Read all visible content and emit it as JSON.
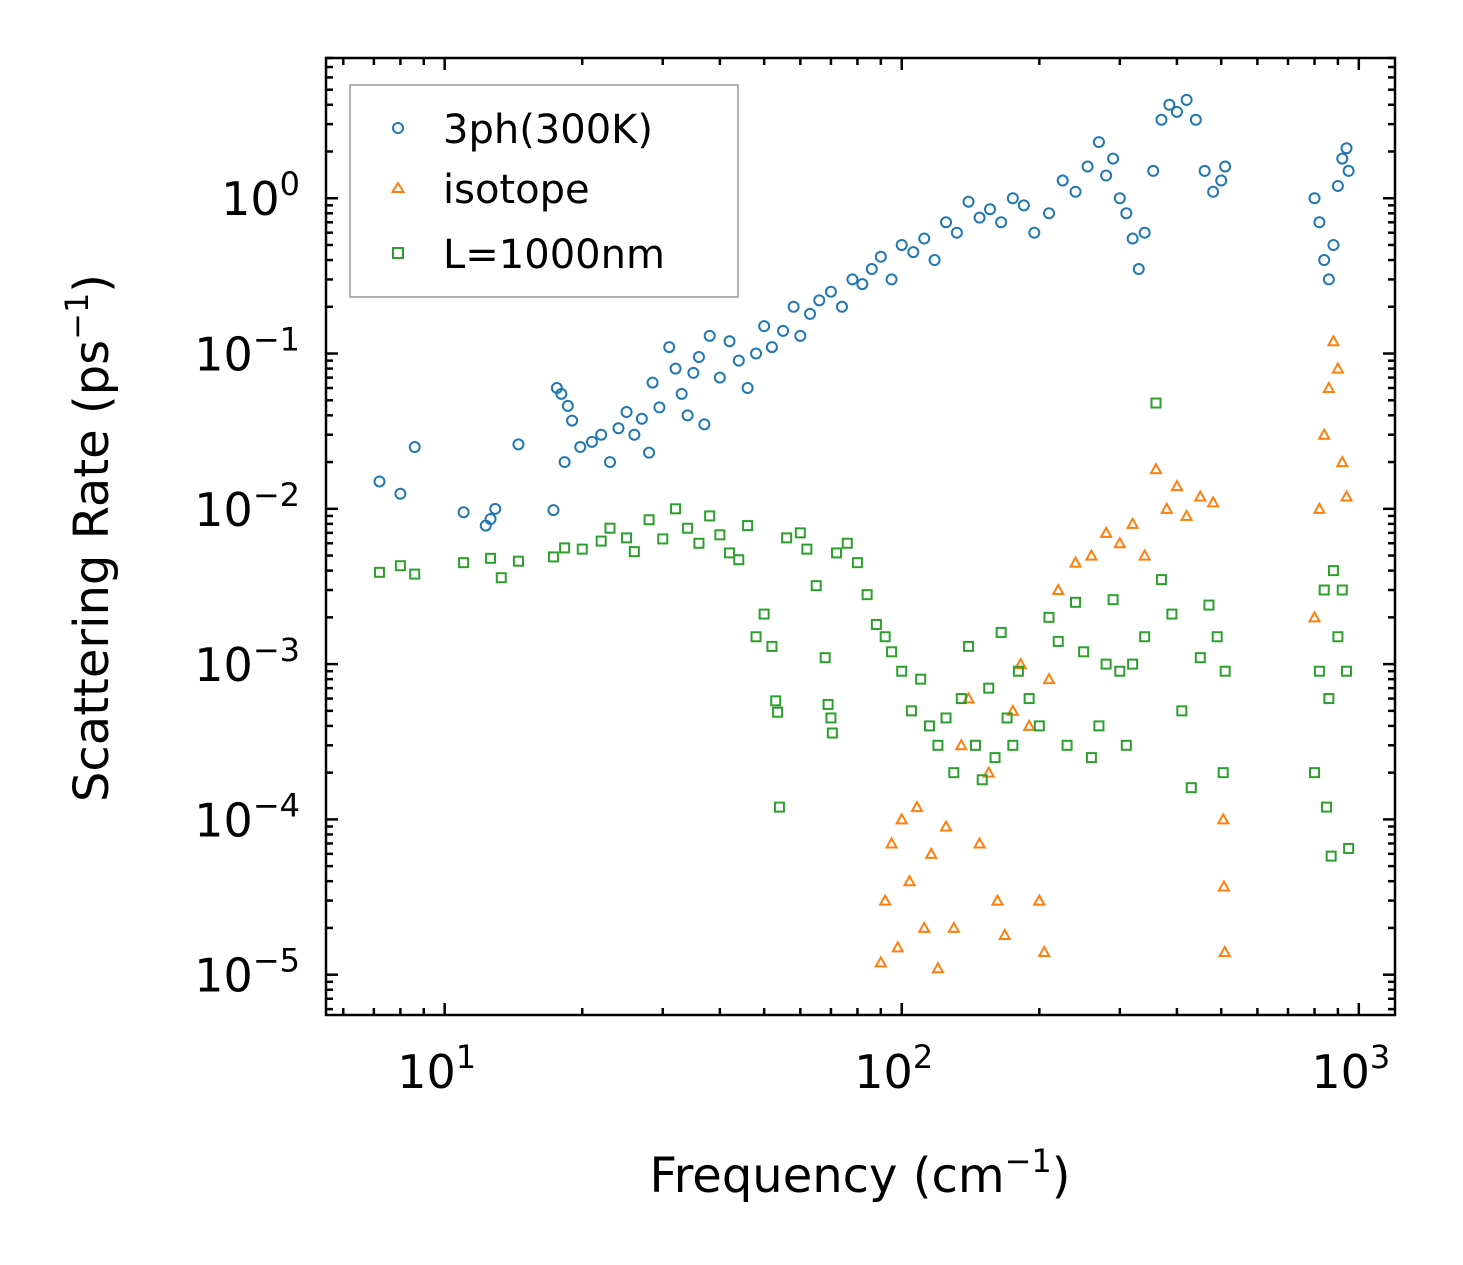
{
  "chart_data": {
    "type": "scatter",
    "xscale": "log",
    "yscale": "log",
    "xlim": [
      5.5,
      1200
    ],
    "ylim": [
      5.5e-06,
      8
    ],
    "xlabel": "Frequency (cm",
    "xlabel_sup": "−1",
    "xlabel_end": ")",
    "ylabel": "Scattering Rate (ps",
    "ylabel_sup": "−1",
    "ylabel_end": ")",
    "x_ticks": [
      {
        "value": 10,
        "base": "10",
        "exp": "1"
      },
      {
        "value": 100,
        "base": "10",
        "exp": "2"
      },
      {
        "value": 1000,
        "base": "10",
        "exp": "3"
      }
    ],
    "y_ticks": [
      {
        "value": 1,
        "base": "10",
        "exp": "0"
      },
      {
        "value": 0.1,
        "base": "10",
        "exp": "−1"
      },
      {
        "value": 0.01,
        "base": "10",
        "exp": "−2"
      },
      {
        "value": 0.001,
        "base": "10",
        "exp": "−3"
      },
      {
        "value": 0.0001,
        "base": "10",
        "exp": "−4"
      },
      {
        "value": 1e-05,
        "base": "10",
        "exp": "−5"
      }
    ],
    "legend_position": "top-left",
    "series": [
      {
        "name": "3ph(300K)",
        "marker": "circle",
        "color": "#1f77b4",
        "points": [
          [
            7.2,
            0.015
          ],
          [
            8.0,
            0.0125
          ],
          [
            8.6,
            0.025
          ],
          [
            11,
            0.0095
          ],
          [
            12.3,
            0.0078
          ],
          [
            12.6,
            0.0086
          ],
          [
            12.9,
            0.01
          ],
          [
            14.5,
            0.026
          ],
          [
            17.3,
            0.0098
          ],
          [
            17.6,
            0.06
          ],
          [
            18,
            0.055
          ],
          [
            18.6,
            0.046
          ],
          [
            19,
            0.037
          ],
          [
            18.3,
            0.02
          ],
          [
            19.8,
            0.025
          ],
          [
            21,
            0.027
          ],
          [
            22,
            0.03
          ],
          [
            23,
            0.02
          ],
          [
            24,
            0.033
          ],
          [
            25,
            0.042
          ],
          [
            26,
            0.03
          ],
          [
            27,
            0.038
          ],
          [
            28,
            0.023
          ],
          [
            28.5,
            0.065
          ],
          [
            29.5,
            0.045
          ],
          [
            31,
            0.11
          ],
          [
            32,
            0.08
          ],
          [
            33,
            0.055
          ],
          [
            34,
            0.04
          ],
          [
            35,
            0.075
          ],
          [
            36,
            0.095
          ],
          [
            37,
            0.035
          ],
          [
            38,
            0.13
          ],
          [
            40,
            0.07
          ],
          [
            42,
            0.12
          ],
          [
            44,
            0.09
          ],
          [
            46,
            0.06
          ],
          [
            48,
            0.1
          ],
          [
            50,
            0.15
          ],
          [
            52,
            0.11
          ],
          [
            55,
            0.14
          ],
          [
            58,
            0.2
          ],
          [
            60,
            0.13
          ],
          [
            63,
            0.18
          ],
          [
            66,
            0.22
          ],
          [
            70,
            0.25
          ],
          [
            74,
            0.2
          ],
          [
            78,
            0.3
          ],
          [
            82,
            0.28
          ],
          [
            86,
            0.35
          ],
          [
            90,
            0.42
          ],
          [
            95,
            0.3
          ],
          [
            100,
            0.5
          ],
          [
            106,
            0.45
          ],
          [
            112,
            0.55
          ],
          [
            118,
            0.4
          ],
          [
            125,
            0.7
          ],
          [
            132,
            0.6
          ],
          [
            140,
            0.95
          ],
          [
            148,
            0.75
          ],
          [
            156,
            0.85
          ],
          [
            165,
            0.7
          ],
          [
            175,
            1.0
          ],
          [
            185,
            0.9
          ],
          [
            195,
            0.6
          ],
          [
            210,
            0.8
          ],
          [
            225,
            1.3
          ],
          [
            240,
            1.1
          ],
          [
            255,
            1.6
          ],
          [
            270,
            2.3
          ],
          [
            280,
            1.4
          ],
          [
            290,
            1.8
          ],
          [
            300,
            1.0
          ],
          [
            310,
            0.8
          ],
          [
            320,
            0.55
          ],
          [
            330,
            0.35
          ],
          [
            340,
            0.6
          ],
          [
            355,
            1.5
          ],
          [
            370,
            3.2
          ],
          [
            385,
            4.0
          ],
          [
            400,
            3.6
          ],
          [
            420,
            4.3
          ],
          [
            440,
            3.2
          ],
          [
            460,
            1.5
          ],
          [
            480,
            1.1
          ],
          [
            500,
            1.3
          ],
          [
            510,
            1.6
          ],
          [
            800,
            1.0
          ],
          [
            820,
            0.7
          ],
          [
            840,
            0.4
          ],
          [
            860,
            0.3
          ],
          [
            880,
            0.5
          ],
          [
            900,
            1.2
          ],
          [
            920,
            1.8
          ],
          [
            940,
            2.1
          ],
          [
            950,
            1.5
          ]
        ]
      },
      {
        "name": "isotope",
        "marker": "triangle",
        "color": "#ff7f0e",
        "points": [
          [
            90,
            1.2e-05
          ],
          [
            92,
            3e-05
          ],
          [
            95,
            7e-05
          ],
          [
            98,
            1.5e-05
          ],
          [
            100,
            0.0001
          ],
          [
            104,
            4e-05
          ],
          [
            108,
            0.00012
          ],
          [
            112,
            2e-05
          ],
          [
            116,
            6e-05
          ],
          [
            120,
            1.1e-05
          ],
          [
            125,
            9e-05
          ],
          [
            130,
            2e-05
          ],
          [
            135,
            0.0003
          ],
          [
            140,
            0.0006
          ],
          [
            148,
            7e-05
          ],
          [
            155,
            0.0002
          ],
          [
            162,
            3e-05
          ],
          [
            168,
            1.8e-05
          ],
          [
            175,
            0.0005
          ],
          [
            182,
            0.001
          ],
          [
            190,
            0.0004
          ],
          [
            200,
            3e-05
          ],
          [
            205,
            1.4e-05
          ],
          [
            210,
            0.0008
          ],
          [
            220,
            0.003
          ],
          [
            240,
            0.0045
          ],
          [
            260,
            0.005
          ],
          [
            280,
            0.007
          ],
          [
            300,
            0.006
          ],
          [
            320,
            0.008
          ],
          [
            340,
            0.005
          ],
          [
            360,
            0.018
          ],
          [
            380,
            0.01
          ],
          [
            400,
            0.014
          ],
          [
            420,
            0.009
          ],
          [
            450,
            0.012
          ],
          [
            480,
            0.011
          ],
          [
            505,
            0.0001
          ],
          [
            507,
            3.7e-05
          ],
          [
            509,
            1.4e-05
          ],
          [
            800,
            0.002
          ],
          [
            820,
            0.01
          ],
          [
            840,
            0.03
          ],
          [
            860,
            0.06
          ],
          [
            880,
            0.12
          ],
          [
            900,
            0.08
          ],
          [
            920,
            0.02
          ],
          [
            940,
            0.012
          ]
        ]
      },
      {
        "name": "L=1000nm",
        "marker": "square",
        "color": "#2ca02c",
        "points": [
          [
            7.2,
            0.0039
          ],
          [
            8.0,
            0.0043
          ],
          [
            8.6,
            0.0038
          ],
          [
            11,
            0.0045
          ],
          [
            12.6,
            0.0048
          ],
          [
            13.3,
            0.0036
          ],
          [
            14.5,
            0.0046
          ],
          [
            17.3,
            0.0049
          ],
          [
            18.3,
            0.0056
          ],
          [
            20,
            0.0055
          ],
          [
            22,
            0.0062
          ],
          [
            23,
            0.0075
          ],
          [
            25,
            0.0065
          ],
          [
            26,
            0.0053
          ],
          [
            28,
            0.0085
          ],
          [
            30,
            0.0064
          ],
          [
            32,
            0.01
          ],
          [
            34,
            0.0075
          ],
          [
            36,
            0.006
          ],
          [
            38,
            0.009
          ],
          [
            40,
            0.0068
          ],
          [
            42,
            0.0052
          ],
          [
            44,
            0.0047
          ],
          [
            46,
            0.0078
          ],
          [
            48,
            0.0015
          ],
          [
            50,
            0.0021
          ],
          [
            52,
            0.0013
          ],
          [
            53,
            0.00058
          ],
          [
            53.5,
            0.00049
          ],
          [
            54,
            0.00012
          ],
          [
            56,
            0.0065
          ],
          [
            60,
            0.007
          ],
          [
            62,
            0.0055
          ],
          [
            65,
            0.0032
          ],
          [
            68,
            0.0011
          ],
          [
            69,
            0.00055
          ],
          [
            70,
            0.00045
          ],
          [
            70.5,
            0.00036
          ],
          [
            72,
            0.0052
          ],
          [
            76,
            0.006
          ],
          [
            80,
            0.0045
          ],
          [
            84,
            0.0028
          ],
          [
            88,
            0.0018
          ],
          [
            92,
            0.0015
          ],
          [
            95,
            0.0012
          ],
          [
            100,
            0.0009
          ],
          [
            105,
            0.0005
          ],
          [
            110,
            0.0008
          ],
          [
            115,
            0.0004
          ],
          [
            120,
            0.0003
          ],
          [
            125,
            0.00045
          ],
          [
            130,
            0.0002
          ],
          [
            135,
            0.0006
          ],
          [
            140,
            0.0013
          ],
          [
            145,
            0.0003
          ],
          [
            150,
            0.00018
          ],
          [
            155,
            0.0007
          ],
          [
            160,
            0.00025
          ],
          [
            165,
            0.0016
          ],
          [
            170,
            0.00045
          ],
          [
            175,
            0.0003
          ],
          [
            180,
            0.0009
          ],
          [
            190,
            0.0006
          ],
          [
            200,
            0.0004
          ],
          [
            210,
            0.002
          ],
          [
            220,
            0.0014
          ],
          [
            230,
            0.0003
          ],
          [
            240,
            0.0025
          ],
          [
            250,
            0.0012
          ],
          [
            260,
            0.00025
          ],
          [
            270,
            0.0004
          ],
          [
            280,
            0.001
          ],
          [
            290,
            0.0026
          ],
          [
            300,
            0.0009
          ],
          [
            310,
            0.0003
          ],
          [
            320,
            0.001
          ],
          [
            340,
            0.0015
          ],
          [
            360,
            0.048
          ],
          [
            370,
            0.0035
          ],
          [
            390,
            0.0021
          ],
          [
            410,
            0.0005
          ],
          [
            430,
            0.00016
          ],
          [
            450,
            0.0011
          ],
          [
            470,
            0.0024
          ],
          [
            490,
            0.0015
          ],
          [
            505,
            0.0002
          ],
          [
            510,
            0.0009
          ],
          [
            800,
            0.0002
          ],
          [
            820,
            0.0009
          ],
          [
            840,
            0.003
          ],
          [
            850,
            0.00012
          ],
          [
            860,
            0.0006
          ],
          [
            870,
            5.8e-05
          ],
          [
            880,
            0.004
          ],
          [
            900,
            0.0015
          ],
          [
            920,
            0.003
          ],
          [
            940,
            0.0009
          ],
          [
            950,
            6.5e-05
          ]
        ]
      }
    ]
  }
}
